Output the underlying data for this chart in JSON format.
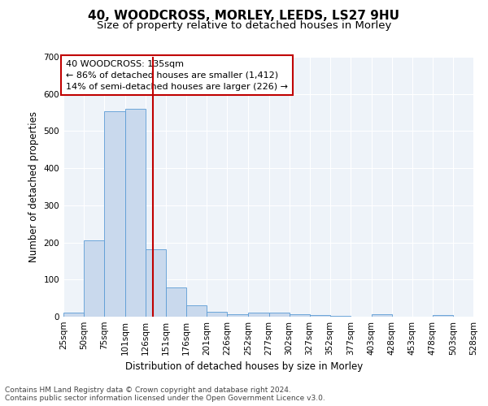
{
  "title1": "40, WOODCROSS, MORLEY, LEEDS, LS27 9HU",
  "title2": "Size of property relative to detached houses in Morley",
  "xlabel": "Distribution of detached houses by size in Morley",
  "ylabel": "Number of detached properties",
  "footnote": "Contains HM Land Registry data © Crown copyright and database right 2024.\nContains public sector information licensed under the Open Government Licence v3.0.",
  "annotation_line1": "40 WOODCROSS: 135sqm",
  "annotation_line2": "← 86% of detached houses are smaller (1,412)",
  "annotation_line3": "14% of semi-detached houses are larger (226) →",
  "property_sqm": 135,
  "bin_edges": [
    25,
    50,
    75,
    101,
    126,
    151,
    176,
    201,
    226,
    252,
    277,
    302,
    327,
    352,
    377,
    403,
    428,
    453,
    478,
    503,
    528
  ],
  "bar_heights": [
    12,
    205,
    553,
    560,
    182,
    78,
    30,
    13,
    7,
    10,
    10,
    7,
    5,
    3,
    0,
    6,
    0,
    0,
    5,
    0
  ],
  "bar_color": "#c9d9ed",
  "bar_edge_color": "#5b9bd5",
  "vline_color": "#c00000",
  "vline_x": 135,
  "ylim": [
    0,
    700
  ],
  "yticks": [
    0,
    100,
    200,
    300,
    400,
    500,
    600,
    700
  ],
  "background_color": "#eef3f9",
  "grid_color": "#ffffff",
  "title1_fontsize": 11,
  "title2_fontsize": 9.5,
  "axis_label_fontsize": 8.5,
  "tick_fontsize": 7.5,
  "annotation_fontsize": 8,
  "footnote_fontsize": 6.5
}
